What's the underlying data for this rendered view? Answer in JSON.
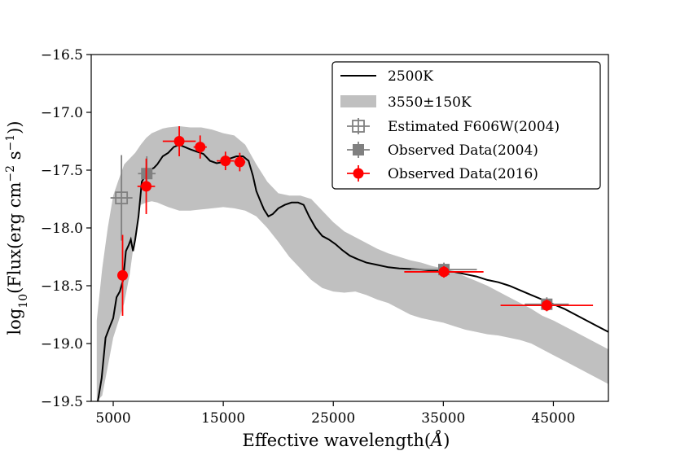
{
  "chart_data": {
    "type": "scatter",
    "xlabel_main": "Effective wavelength(",
    "xlabel_unit": "Å",
    "xlabel_close": ")",
    "ylabel_prefix": "log",
    "ylabel_sub": "10",
    "ylabel_mid": "(Flux(erg cm",
    "ylabel_exp1": "−2",
    "ylabel_mid2": " s",
    "ylabel_exp2": "−1",
    "ylabel_suffix": "))",
    "xlim": [
      3000,
      50000
    ],
    "ylim": [
      -19.5,
      -16.5
    ],
    "xticks": [
      5000,
      15000,
      25000,
      35000,
      45000
    ],
    "xtick_labels": [
      "5000",
      "15000",
      "25000",
      "35000",
      "45000"
    ],
    "yticks": [
      -19.5,
      -19.0,
      -18.5,
      -18.0,
      -17.5,
      -17.0,
      -16.5
    ],
    "ytick_labels": [
      "−19.5",
      "−19.0",
      "−18.5",
      "−18.0",
      "−17.5",
      "−17.0",
      "−16.5"
    ],
    "legend_position": "top-right",
    "series": [
      {
        "name": "2500K",
        "type": "line",
        "color": "#000000",
        "x": [
          3600,
          3950,
          4300,
          4700,
          5000,
          5300,
          5600,
          5900,
          6150,
          6400,
          6600,
          6800,
          7000,
          7300,
          7600,
          7900,
          8100,
          8300,
          8700,
          9000,
          9500,
          10000,
          10500,
          11000,
          11500,
          12000,
          12600,
          13200,
          13800,
          14400,
          15000,
          15600,
          16200,
          16800,
          17300,
          17700,
          18000,
          18300,
          18700,
          19100,
          19500,
          20000,
          20600,
          21200,
          21800,
          22300,
          22800,
          23400,
          24000,
          24600,
          25200,
          25800,
          26500,
          27200,
          28000,
          29000,
          30000,
          31000,
          32000,
          33000,
          34000,
          35000,
          36000,
          37000,
          38000,
          39000,
          40000,
          41000,
          42000,
          43000,
          44000,
          45000,
          46000,
          47000,
          48000,
          49000,
          50000
        ],
        "y": [
          -19.5,
          -19.3,
          -18.95,
          -18.85,
          -18.78,
          -18.6,
          -18.55,
          -18.45,
          -18.2,
          -18.15,
          -18.1,
          -18.2,
          -18.1,
          -17.9,
          -17.6,
          -17.55,
          -17.52,
          -17.5,
          -17.48,
          -17.45,
          -17.38,
          -17.35,
          -17.3,
          -17.28,
          -17.3,
          -17.32,
          -17.34,
          -17.36,
          -17.42,
          -17.44,
          -17.43,
          -17.4,
          -17.38,
          -17.38,
          -17.42,
          -17.55,
          -17.68,
          -17.75,
          -17.84,
          -17.9,
          -17.88,
          -17.83,
          -17.8,
          -17.78,
          -17.78,
          -17.8,
          -17.9,
          -18.0,
          -18.07,
          -18.1,
          -18.14,
          -18.19,
          -18.24,
          -18.27,
          -18.3,
          -18.32,
          -18.34,
          -18.35,
          -18.355,
          -18.36,
          -18.37,
          -18.375,
          -18.38,
          -18.4,
          -18.42,
          -18.45,
          -18.47,
          -18.5,
          -18.54,
          -18.58,
          -18.62,
          -18.66,
          -18.7,
          -18.75,
          -18.8,
          -18.85,
          -18.9
        ]
      },
      {
        "name": "3550±150K",
        "type": "band",
        "color": "#c0c0c0",
        "x": [
          3500,
          4000,
          4500,
          5000,
          5500,
          6000,
          6500,
          7000,
          7500,
          8000,
          8500,
          9000,
          9500,
          10000,
          11000,
          12000,
          13000,
          14000,
          15000,
          16000,
          17000,
          18000,
          19000,
          20000,
          21000,
          22000,
          23000,
          24000,
          25000,
          26000,
          27000,
          28000,
          29000,
          30000,
          31000,
          32000,
          33000,
          34000,
          35000,
          36000,
          37000,
          38000,
          39000,
          40000,
          41000,
          42000,
          43000,
          44000,
          45000,
          46000,
          47000,
          48000,
          49000,
          50000
        ],
        "upper": [
          -18.8,
          -18.35,
          -18.0,
          -17.72,
          -17.58,
          -17.45,
          -17.4,
          -17.35,
          -17.28,
          -17.22,
          -17.18,
          -17.16,
          -17.14,
          -17.13,
          -17.12,
          -17.13,
          -17.13,
          -17.15,
          -17.18,
          -17.2,
          -17.28,
          -17.45,
          -17.6,
          -17.7,
          -17.72,
          -17.72,
          -17.75,
          -17.85,
          -17.95,
          -18.03,
          -18.08,
          -18.13,
          -18.18,
          -18.22,
          -18.25,
          -18.28,
          -18.3,
          -18.33,
          -18.35,
          -18.38,
          -18.42,
          -18.46,
          -18.5,
          -18.55,
          -18.6,
          -18.65,
          -18.7,
          -18.76,
          -18.8,
          -18.85,
          -18.9,
          -18.95,
          -19.0,
          -19.05
        ],
        "lower": [
          -19.5,
          -19.45,
          -19.2,
          -18.95,
          -18.8,
          -18.65,
          -18.4,
          -18.05,
          -17.8,
          -17.78,
          -17.77,
          -17.78,
          -17.8,
          -17.82,
          -17.85,
          -17.85,
          -17.84,
          -17.83,
          -17.82,
          -17.83,
          -17.85,
          -17.9,
          -18.0,
          -18.12,
          -18.25,
          -18.35,
          -18.45,
          -18.52,
          -18.55,
          -18.56,
          -18.55,
          -18.58,
          -18.62,
          -18.65,
          -18.7,
          -18.75,
          -18.78,
          -18.8,
          -18.82,
          -18.85,
          -18.88,
          -18.9,
          -18.92,
          -18.93,
          -18.95,
          -18.97,
          -19.0,
          -19.05,
          -19.1,
          -19.15,
          -19.2,
          -19.25,
          -19.3,
          -19.35
        ]
      },
      {
        "name": "Estimated F606W(2004)",
        "type": "errorbar",
        "marker": "open-square-cross",
        "color": "#808080",
        "points": [
          {
            "x": 5750,
            "y": -17.74,
            "xerr": 1000,
            "yerr": 0.37
          }
        ]
      },
      {
        "name": "Observed Data(2004)",
        "type": "errorbar",
        "marker": "square",
        "color": "#808080",
        "points": [
          {
            "x": 8050,
            "y": -17.53,
            "xerr": 800,
            "yerr": 0.15
          },
          {
            "x": 35050,
            "y": -18.36,
            "xerr": 3000,
            "yerr": 0.06
          },
          {
            "x": 44400,
            "y": -18.66,
            "xerr": 2000,
            "yerr": 0.06
          }
        ]
      },
      {
        "name": "Observed Data(2016)",
        "type": "errorbar",
        "marker": "circle",
        "color": "#ff0000",
        "points": [
          {
            "x": 5850,
            "y": -18.41,
            "xerr": 450,
            "yerr": 0.35
          },
          {
            "x": 8000,
            "y": -17.64,
            "xerr": 800,
            "yerr": 0.24
          },
          {
            "x": 11000,
            "y": -17.25,
            "xerr": 1500,
            "yerr": 0.13
          },
          {
            "x": 12900,
            "y": -17.3,
            "xerr": 600,
            "yerr": 0.1
          },
          {
            "x": 15200,
            "y": -17.42,
            "xerr": 800,
            "yerr": 0.08
          },
          {
            "x": 16500,
            "y": -17.43,
            "xerr": 500,
            "yerr": 0.08
          },
          {
            "x": 35050,
            "y": -18.38,
            "xerr": 3600,
            "yerr": 0.05
          },
          {
            "x": 44400,
            "y": -18.67,
            "xerr": 4200,
            "yerr": 0.05
          }
        ]
      }
    ]
  }
}
